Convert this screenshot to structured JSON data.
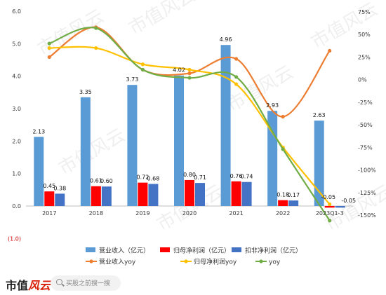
{
  "chart_data": {
    "type": "bar",
    "categories": [
      "2017",
      "2018",
      "2019",
      "2020",
      "2021",
      "2022",
      "2023Q1-3"
    ],
    "series": [
      {
        "name": "营业收入（亿元）",
        "kind": "bar",
        "axis": "left",
        "color": "#5b9bd5",
        "values": [
          2.13,
          3.35,
          3.73,
          4.02,
          4.96,
          2.93,
          2.63
        ],
        "labels": [
          "2.13",
          "3.35",
          "3.73",
          "4.02",
          "4.96",
          "2.93",
          "2.63"
        ]
      },
      {
        "name": "归母净利润（亿元）",
        "kind": "bar",
        "axis": "left",
        "color": "#ff0000",
        "values": [
          0.45,
          0.61,
          0.72,
          0.8,
          0.76,
          0.18,
          -0.05
        ],
        "labels": [
          "0.45",
          "0.61",
          "0.72",
          "0.80",
          "0.76",
          "0.18",
          "-0.05"
        ]
      },
      {
        "name": "扣非净利润（亿元）",
        "kind": "bar",
        "axis": "left",
        "color": "#4472c4",
        "values": [
          0.38,
          0.6,
          0.68,
          0.71,
          0.74,
          0.17,
          -0.05
        ],
        "labels": [
          "0.38",
          "0.60",
          "0.68",
          "0.71",
          "0.74",
          "0.17",
          "-0.05"
        ]
      },
      {
        "name": "营业收入yoy",
        "kind": "line",
        "axis": "right",
        "color": "#ed7d31",
        "values": [
          25,
          58,
          11,
          7,
          23,
          -41,
          32
        ]
      },
      {
        "name": "归母净利润yoy",
        "kind": "line",
        "axis": "right",
        "color": "#ffc000",
        "values": [
          35,
          35,
          17,
          11,
          -5,
          -75,
          -138
        ]
      },
      {
        "name": "yoy",
        "kind": "line",
        "axis": "right",
        "color": "#70ad47",
        "values": [
          40,
          57,
          11,
          2,
          3,
          -77,
          -156
        ]
      }
    ],
    "left_axis": {
      "ticks": [
        "6.0",
        "5.0",
        "4.0",
        "3.0",
        "2.0",
        "1.0",
        "0.0"
      ],
      "extra_tick": "(1.0)",
      "ylim": [
        -1,
        6
      ]
    },
    "right_axis": {
      "ticks": [
        "75%",
        "50%",
        "25%",
        "0%",
        "-25%",
        "-50%",
        "-75%",
        "-100%",
        "-125%",
        "-150%"
      ],
      "ylim": [
        -150,
        75
      ]
    },
    "grid": false,
    "legend_position": "bottom"
  },
  "footer": {
    "brand_prefix": "市值",
    "brand_mark": "风云",
    "search_placeholder": "买股之前搜一搜"
  },
  "watermark_text": "市值风云"
}
